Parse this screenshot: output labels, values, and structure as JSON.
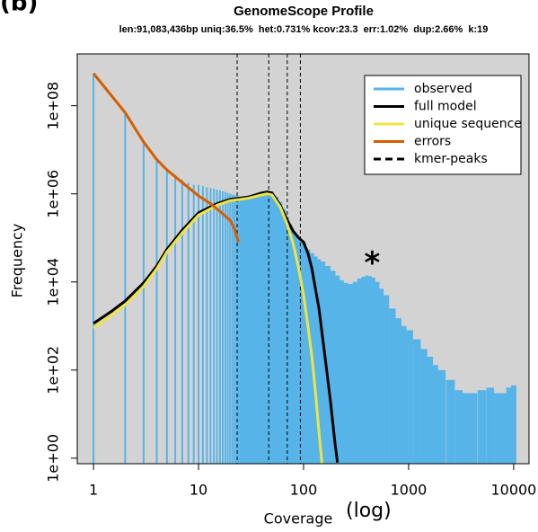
{
  "chart_data": {
    "type": "line",
    "panel_label": "(b)",
    "title": "GenomeScope Profile",
    "subtitle": "len:91,083,436bp uniq:36.5%  het:0.731% kcov:23.3  err:1.02%  dup:2.66%  k:19",
    "xlabel": "Coverage",
    "xlabel_note": "(log)",
    "ylabel": "Frequency",
    "xscale": "log",
    "yscale": "log",
    "xlim": [
      0.7,
      14000
    ],
    "ylim": [
      0.75,
      1500000000
    ],
    "xticks": [
      1,
      10,
      100,
      1000,
      10000
    ],
    "yticks": [
      {
        "value": 1,
        "label": "1e+00"
      },
      {
        "value": 100,
        "label": "1e+02"
      },
      {
        "value": 10000,
        "label": "1e+04"
      },
      {
        "value": 1000000,
        "label": "1e+06"
      },
      {
        "value": 100000000,
        "label": "1e+08"
      }
    ],
    "background": "#d3d3d3",
    "legend": "top-right",
    "annotation": "*",
    "annotation_x": 450,
    "annotation_y": 40000,
    "series": [
      {
        "name": "observed",
        "color": "#56b4e9",
        "style": "bars",
        "x": [
          1,
          2,
          3,
          4,
          5,
          6,
          7,
          8,
          9,
          10,
          11,
          12,
          13,
          14,
          15,
          16,
          17,
          18,
          19,
          20,
          21,
          22,
          23,
          24,
          25,
          26,
          27,
          28,
          29,
          30,
          32,
          34,
          36,
          38,
          40,
          43,
          46,
          50,
          55,
          60,
          65,
          70,
          75,
          80,
          85,
          90,
          95,
          100,
          110,
          120,
          130,
          140,
          150,
          170,
          190,
          210,
          230,
          250,
          280,
          310,
          340,
          370,
          400,
          430,
          460,
          500,
          550,
          600,
          700,
          800,
          900,
          1000,
          1200,
          1400,
          1600,
          1800,
          2000,
          2500,
          3000,
          3500,
          4000,
          5000,
          6000,
          7000,
          8000,
          9000,
          10000
        ],
        "values": [
          540000000,
          72000000,
          15000000,
          6300000,
          3700000,
          2700000,
          2100000,
          1800000,
          1600000,
          1600000,
          1500000,
          1400000,
          1350000,
          1300000,
          1250000,
          1200000,
          1150000,
          1100000,
          1050000,
          1000000,
          960000,
          930000,
          900000,
          880000,
          870000,
          860000,
          860000,
          860000,
          870000,
          880000,
          900000,
          930000,
          960000,
          990000,
          1000000,
          1020000,
          1000000,
          960000,
          850000,
          650000,
          450000,
          300000,
          200000,
          140000,
          110000,
          90000,
          80000,
          70000,
          55000,
          45000,
          38000,
          33000,
          29000,
          23000,
          18000,
          14000,
          11000,
          9500,
          9000,
          10000,
          12000,
          13000,
          14000,
          13500,
          12500,
          10000,
          7000,
          5000,
          2500,
          1500,
          1000,
          800,
          500,
          300,
          200,
          130,
          100,
          60,
          35,
          30,
          30,
          35,
          40,
          30,
          30,
          40,
          45
        ]
      },
      {
        "name": "full model",
        "color": "#000000",
        "style": "line",
        "x": [
          1,
          1.5,
          2,
          3,
          4,
          5,
          7,
          10,
          15,
          20,
          25,
          30,
          40,
          45,
          50,
          60,
          70,
          80,
          90,
          100,
          110,
          120,
          140,
          160,
          180,
          200,
          210
        ],
        "values": [
          1150,
          2200,
          3700,
          9500,
          23000,
          55000,
          150000,
          370000,
          600000,
          750000,
          800000,
          850000,
          1050000,
          1100000,
          1050000,
          550000,
          250000,
          140000,
          100000,
          80000,
          45000,
          20000,
          2500,
          200,
          20,
          2,
          0.8
        ]
      },
      {
        "name": "unique sequence",
        "color": "#f0e442",
        "style": "line",
        "x": [
          1,
          1.5,
          2,
          3,
          4,
          5,
          7,
          10,
          15,
          20,
          25,
          30,
          40,
          45,
          50,
          60,
          70,
          80,
          90,
          100,
          110,
          120,
          130,
          140,
          150
        ],
        "values": [
          900,
          1800,
          3000,
          8000,
          20000,
          48000,
          130000,
          330000,
          550000,
          700000,
          750000,
          800000,
          950000,
          1000000,
          950000,
          500000,
          200000,
          70000,
          20000,
          5000,
          1000,
          200,
          30,
          4,
          0.7
        ]
      },
      {
        "name": "errors",
        "color": "#d55e00",
        "style": "line",
        "x": [
          1,
          2,
          3,
          4,
          5,
          7,
          10,
          13,
          16,
          20,
          22,
          24
        ],
        "values": [
          540000000,
          70000000,
          15000000,
          6000000,
          3500000,
          1800000,
          900000,
          600000,
          400000,
          250000,
          160000,
          80000
        ]
      }
    ],
    "peaks": {
      "name": "kmer-peaks",
      "color": "#000000",
      "x": [
        23.3,
        46.6,
        69.9,
        93.2
      ]
    }
  }
}
